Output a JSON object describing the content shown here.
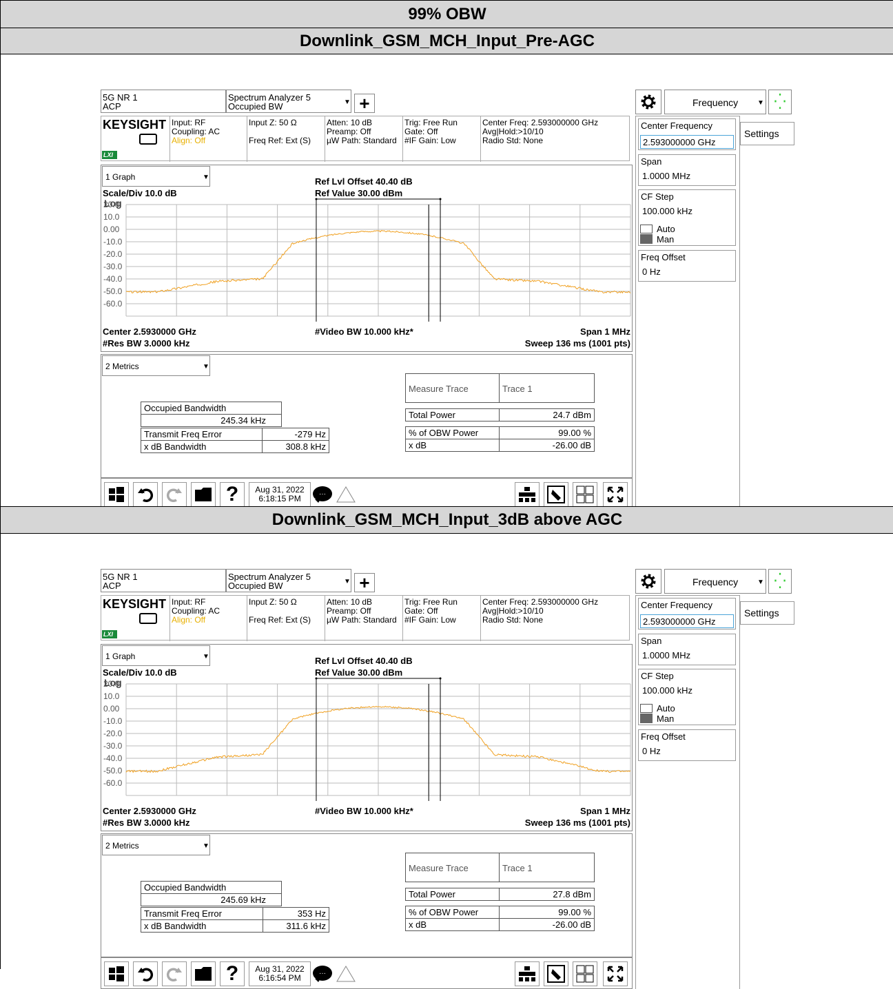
{
  "title": "99% OBW",
  "panels": [
    {
      "heading": "Downlink_GSM_MCH_Input_Pre-AGC",
      "tab1": {
        "line1": "5G NR 1",
        "line2": "ACP"
      },
      "tab2": {
        "line1": "Spectrum Analyzer 5",
        "line2": "Occupied BW"
      },
      "brand": "KEYSIGHT",
      "lxi": "LXI",
      "info": {
        "input": "Input: RF",
        "coupling": "Coupling: AC",
        "align": "Align: Off",
        "inputz": "Input Z: 50 Ω",
        "freqref": "Freq Ref: Ext (S)",
        "atten": "Atten: 10 dB",
        "preamp": "Preamp: Off",
        "uw": "µW Path: Standard",
        "trig": "Trig: Free Run",
        "gate": "Gate: Off",
        "ifgain": "#IF Gain: Low",
        "cf": "Center Freq: 2.593000000 GHz",
        "avg": "Avg|Hold:>10/10",
        "radio": "Radio Std: None"
      },
      "graph_select": "1 Graph",
      "scale": "Scale/Div 10.0 dB",
      "log": "Log",
      "ref_offset": "Ref Lvl Offset 40.40 dB",
      "ref_value": "Ref Value 30.00 dBm",
      "yticks": [
        "20.0",
        "10.0",
        "0.00",
        "-10.0",
        "-20.0",
        "-30.0",
        "-40.0",
        "-50.0",
        "-60.0"
      ],
      "center": "Center 2.5930000 GHz",
      "resbw": "#Res BW 3.0000 kHz",
      "vbw": "#Video BW 10.000 kHz*",
      "span": "Span 1 MHz",
      "sweep": "Sweep 136 ms (1001 pts)",
      "metrics_select": "2 Metrics",
      "occ_label": "Occupied Bandwidth",
      "occ_value": "245.34 kHz",
      "tfe_label": "Transmit Freq Error",
      "tfe_value": "-279 Hz",
      "xdb_label": "x dB Bandwidth",
      "xdb_value": "308.8 kHz",
      "mt_label": "Measure Trace",
      "mt_value": "Trace 1",
      "tp_label": "Total Power",
      "tp_value": "24.7 dBm",
      "obwp_label": "% of OBW Power",
      "obwp_value": "99.00 %",
      "xdb2_label": "x dB",
      "xdb2_value": "-26.00 dB",
      "date": "Aug 31, 2022",
      "time": "6:18:15 PM",
      "menu_select": "Frequency",
      "settings": "Settings",
      "cf_label": "Center Frequency",
      "cf_value": "2.593000000 GHz",
      "span_label": "Span",
      "span_value": "1.0000 MHz",
      "cfstep_label": "CF Step",
      "cfstep_value": "100.000 kHz",
      "auto": "Auto",
      "man": "Man",
      "freqoff_label": "Freq Offset",
      "freqoff_value": "0 Hz",
      "trace_peak_dbm": 8.5,
      "trace_shoulder_dbm": -30,
      "trace_floor_dbm": -40.5
    },
    {
      "heading": "Downlink_GSM_MCH_Input_3dB above AGC",
      "tab1": {
        "line1": "5G NR 1",
        "line2": "ACP"
      },
      "tab2": {
        "line1": "Spectrum Analyzer 5",
        "line2": "Occupied BW"
      },
      "brand": "KEYSIGHT",
      "lxi": "LXI",
      "info": {
        "input": "Input: RF",
        "coupling": "Coupling: AC",
        "align": "Align: Off",
        "inputz": "Input Z: 50 Ω",
        "freqref": "Freq Ref: Ext (S)",
        "atten": "Atten: 10 dB",
        "preamp": "Preamp: Off",
        "uw": "µW Path: Standard",
        "trig": "Trig: Free Run",
        "gate": "Gate: Off",
        "ifgain": "#IF Gain: Low",
        "cf": "Center Freq: 2.593000000 GHz",
        "avg": "Avg|Hold:>10/10",
        "radio": "Radio Std: None"
      },
      "graph_select": "1 Graph",
      "scale": "Scale/Div 10.0 dB",
      "log": "Log",
      "ref_offset": "Ref Lvl Offset 40.40 dB",
      "ref_value": "Ref Value 30.00 dBm",
      "yticks": [
        "20.0",
        "10.0",
        "0.00",
        "-10.0",
        "-20.0",
        "-30.0",
        "-40.0",
        "-50.0",
        "-60.0"
      ],
      "center": "Center 2.5930000 GHz",
      "resbw": "#Res BW 3.0000 kHz",
      "vbw": "#Video BW 10.000 kHz*",
      "span": "Span 1 MHz",
      "sweep": "Sweep 136 ms (1001 pts)",
      "metrics_select": "2 Metrics",
      "occ_label": "Occupied Bandwidth",
      "occ_value": "245.69 kHz",
      "tfe_label": "Transmit Freq Error",
      "tfe_value": "353 Hz",
      "xdb_label": "x dB Bandwidth",
      "xdb_value": "311.6 kHz",
      "mt_label": "Measure Trace",
      "mt_value": "Trace 1",
      "tp_label": "Total Power",
      "tp_value": "27.8 dBm",
      "obwp_label": "% of OBW Power",
      "obwp_value": "99.00 %",
      "xdb2_label": "x dB",
      "xdb2_value": "-26.00 dB",
      "date": "Aug 31, 2022",
      "time": "6:16:54 PM",
      "menu_select": "Frequency",
      "settings": "Settings",
      "cf_label": "Center Frequency",
      "cf_value": "2.593000000 GHz",
      "span_label": "Span",
      "span_value": "1.0000 MHz",
      "cfstep_label": "CF Step",
      "cfstep_value": "100.000 kHz",
      "auto": "Auto",
      "man": "Man",
      "freqoff_label": "Freq Offset",
      "freqoff_value": "0 Hz",
      "trace_peak_dbm": 11.5,
      "trace_shoulder_dbm": -27,
      "trace_floor_dbm": -40.5
    }
  ],
  "colors": {
    "trace": "#f0a020",
    "lxi": "#1a8a3a",
    "align": "#e8b000",
    "header_bg": "#d6d6d6"
  }
}
